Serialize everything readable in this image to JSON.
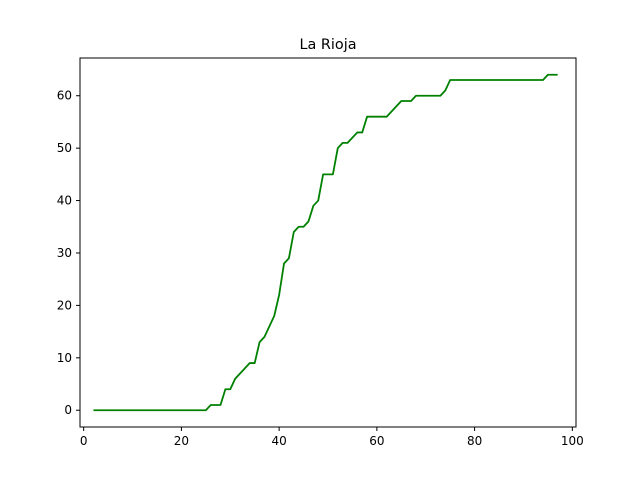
{
  "chart_data": {
    "type": "line",
    "title": "La Rioja",
    "xlabel": "",
    "ylabel": "",
    "xlim": [
      -0.75,
      100.75
    ],
    "ylim": [
      -3.2,
      67.2
    ],
    "xticks": [
      0,
      20,
      40,
      60,
      80,
      100
    ],
    "yticks": [
      0,
      10,
      20,
      30,
      40,
      50,
      60
    ],
    "grid": false,
    "legend": "none",
    "line_color": "#008000",
    "series": [
      {
        "x": [
          2,
          3,
          4,
          5,
          6,
          7,
          8,
          9,
          10,
          11,
          12,
          13,
          14,
          15,
          16,
          17,
          18,
          19,
          20,
          21,
          22,
          23,
          24,
          25,
          26,
          27,
          28,
          29,
          30,
          31,
          32,
          33,
          34,
          35,
          36,
          37,
          38,
          39,
          40,
          41,
          42,
          43,
          44,
          45,
          46,
          47,
          48,
          49,
          50,
          51,
          52,
          53,
          54,
          55,
          56,
          57,
          58,
          59,
          60,
          61,
          62,
          63,
          64,
          65,
          66,
          67,
          68,
          69,
          70,
          71,
          72,
          73,
          74,
          75,
          76,
          77,
          78,
          79,
          80,
          81,
          82,
          83,
          84,
          85,
          86,
          87,
          88,
          89,
          90,
          91,
          92,
          93,
          94,
          95,
          96,
          97
        ],
        "y": [
          0,
          0,
          0,
          0,
          0,
          0,
          0,
          0,
          0,
          0,
          0,
          0,
          0,
          0,
          0,
          0,
          0,
          0,
          0,
          0,
          0,
          0,
          0,
          0,
          1,
          1,
          1,
          4,
          4,
          6,
          7,
          8,
          9,
          9,
          13,
          14,
          16,
          18,
          22,
          28,
          29,
          34,
          35,
          35,
          36,
          39,
          40,
          45,
          45,
          45,
          50,
          51,
          51,
          52,
          53,
          53,
          56,
          56,
          56,
          56,
          56,
          57,
          58,
          59,
          59,
          59,
          60,
          60,
          60,
          60,
          60,
          60,
          61,
          63,
          63,
          63,
          63,
          63,
          63,
          63,
          63,
          63,
          63,
          63,
          63,
          63,
          63,
          63,
          63,
          63,
          63,
          63,
          63,
          64,
          64,
          64
        ]
      }
    ]
  }
}
